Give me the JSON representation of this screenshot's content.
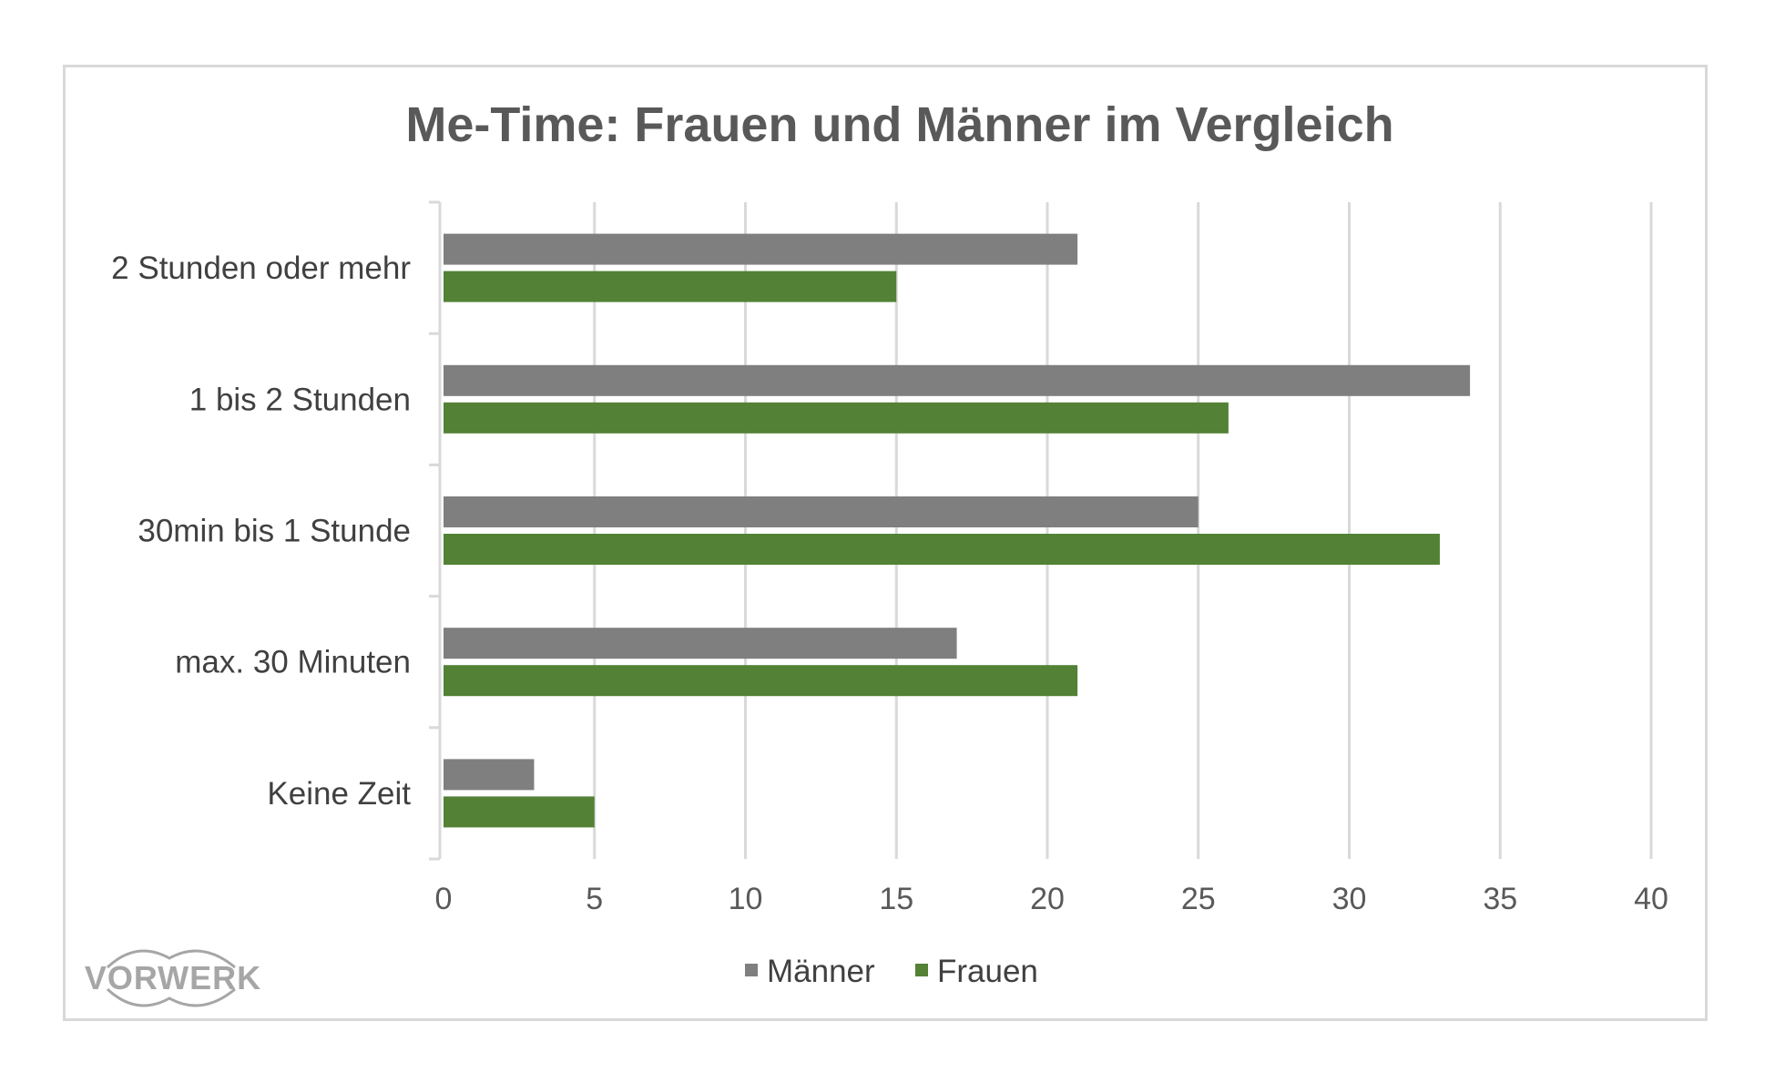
{
  "chart_data": {
    "type": "bar",
    "orientation": "horizontal",
    "title": "Me-Time: Frauen und Männer im Vergleich",
    "categories": [
      "2 Stunden oder mehr",
      "1 bis 2 Stunden",
      "30min bis 1 Stunde",
      "max. 30 Minuten",
      "Keine Zeit"
    ],
    "series": [
      {
        "name": "Männer",
        "color": "#7f7f7f",
        "values": [
          21,
          34,
          25,
          17,
          3
        ]
      },
      {
        "name": "Frauen",
        "color": "#538135",
        "values": [
          15,
          26,
          33,
          21,
          5
        ]
      }
    ],
    "xlim": [
      0,
      40
    ],
    "xticks": [
      "0",
      "5",
      "10",
      "15",
      "20",
      "25",
      "30",
      "35",
      "40"
    ],
    "grid": true,
    "legend_position": "bottom"
  },
  "logo": {
    "text": "VORWERK"
  }
}
